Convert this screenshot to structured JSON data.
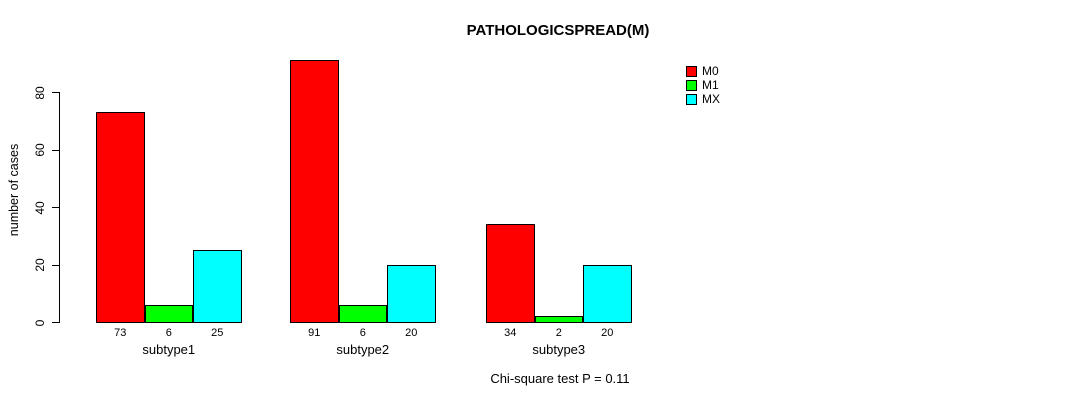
{
  "chart_data": {
    "type": "bar",
    "title": "PATHOLOGICSPREAD(M)",
    "ylabel": "number of cases",
    "xlabel": "",
    "categories": [
      "subtype1",
      "subtype2",
      "subtype3"
    ],
    "series": [
      {
        "name": "M0",
        "color": "#FF0000",
        "values": [
          73,
          91,
          34
        ]
      },
      {
        "name": "M1",
        "color": "#00FF00",
        "values": [
          6,
          6,
          2
        ]
      },
      {
        "name": "MX",
        "color": "#00FFFF",
        "values": [
          25,
          20,
          20
        ]
      }
    ],
    "bar_value_labels": [
      [
        "73",
        "6",
        "25"
      ],
      [
        "91",
        "6",
        "20"
      ],
      [
        "34",
        "2",
        "20"
      ]
    ],
    "yticks": [
      0,
      20,
      40,
      60,
      80
    ],
    "axis_range": [
      0,
      80
    ],
    "grid": false,
    "legend_position": "top-right",
    "legend_entries": [
      {
        "label": "M0",
        "color": "#FF0000"
      },
      {
        "label": "M1",
        "color": "#00FF00"
      },
      {
        "label": "MX",
        "color": "#00FFFF"
      }
    ],
    "caption": "Chi-square test P = 0.11"
  }
}
